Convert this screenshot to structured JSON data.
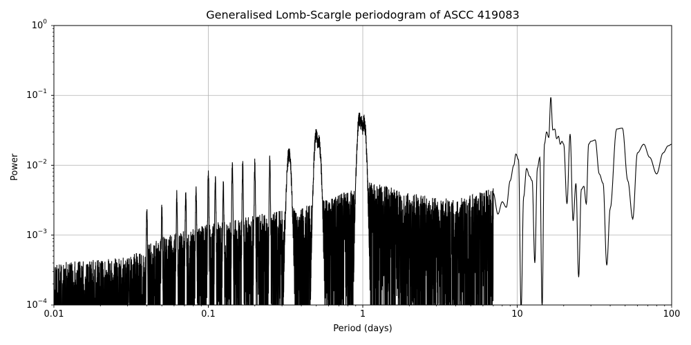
{
  "chart_data": {
    "type": "line",
    "title": "Generalised Lomb-Scargle periodogram of ASCC 419083",
    "xlabel": "Period (days)",
    "ylabel": "Power",
    "xscale": "log",
    "yscale": "log",
    "xlim": [
      0.01,
      100
    ],
    "ylim": [
      0.0001,
      1
    ],
    "grid": true,
    "legend": null,
    "x_ticks": [
      {
        "value": 0.01,
        "label": "0.01"
      },
      {
        "value": 0.1,
        "label": "0.1"
      },
      {
        "value": 1,
        "label": "1"
      },
      {
        "value": 10,
        "label": "10"
      },
      {
        "value": 100,
        "label": "100"
      }
    ],
    "y_ticks": [
      {
        "value": 1,
        "base": "10",
        "exp": "0"
      },
      {
        "value": 0.1,
        "base": "10",
        "exp": "−1"
      },
      {
        "value": 0.01,
        "base": "10",
        "exp": "−2"
      },
      {
        "value": 0.001,
        "base": "10",
        "exp": "−3"
      },
      {
        "value": 0.0001,
        "base": "10",
        "exp": "−4"
      }
    ],
    "series_color": "#000000",
    "noise_floor_envelope": {
      "period": [
        0.01,
        0.03,
        0.05,
        0.1,
        0.2,
        0.5,
        0.9,
        1.0,
        2.0,
        4.0,
        7.0,
        9.0
      ],
      "power": [
        0.00025,
        0.0003,
        0.0006,
        0.0009,
        0.0012,
        0.0018,
        0.003,
        0.004,
        0.0025,
        0.002,
        0.003,
        0.004
      ]
    },
    "alias_peaks": [
      {
        "period": 0.04,
        "power": 0.0028
      },
      {
        "period": 0.05,
        "power": 0.003
      },
      {
        "period": 0.0625,
        "power": 0.0045
      },
      {
        "period": 0.0714,
        "power": 0.005
      },
      {
        "period": 0.0833,
        "power": 0.0055
      },
      {
        "period": 0.1,
        "power": 0.0098
      },
      {
        "period": 0.111,
        "power": 0.0085
      },
      {
        "period": 0.125,
        "power": 0.007
      },
      {
        "period": 0.143,
        "power": 0.012
      },
      {
        "period": 0.167,
        "power": 0.0125
      },
      {
        "period": 0.2,
        "power": 0.013
      },
      {
        "period": 0.25,
        "power": 0.015
      },
      {
        "period": 0.333,
        "power": 0.019
      },
      {
        "period": 0.5,
        "power": 0.035
      },
      {
        "period": 0.52,
        "power": 0.028
      },
      {
        "period": 0.95,
        "power": 0.059
      },
      {
        "period": 0.98,
        "power": 0.052
      },
      {
        "period": 1.02,
        "power": 0.054
      }
    ],
    "long_period_curve": {
      "period": [
        7.0,
        7.5,
        8.0,
        8.5,
        9.0,
        9.5,
        9.8,
        10.2,
        10.6,
        11.0,
        11.5,
        12.0,
        12.5,
        13.0,
        13.5,
        14.0,
        14.5,
        15.0,
        15.5,
        16.0,
        16.5,
        17.0,
        17.5,
        18.0,
        18.5,
        19.0,
        19.5,
        20.0,
        21.0,
        22.0,
        23.0,
        24.0,
        25.0,
        26.0,
        27.0,
        28.0,
        29.0,
        30.0,
        32.0,
        34.0,
        36.0,
        38.0,
        40.0,
        44.0,
        48.0,
        52.0,
        56.0,
        60.0,
        66.0,
        72.0,
        80.0,
        88.0,
        95.0,
        100.0
      ],
      "power": [
        0.004,
        0.002,
        0.003,
        0.0025,
        0.006,
        0.01,
        0.0145,
        0.012,
        8e-05,
        0.0035,
        0.009,
        0.007,
        0.006,
        0.0004,
        0.009,
        0.013,
        9e-05,
        0.02,
        0.03,
        0.025,
        0.094,
        0.032,
        0.033,
        0.024,
        0.026,
        0.02,
        0.022,
        0.02,
        0.0028,
        0.028,
        0.0016,
        0.0055,
        0.00025,
        0.0045,
        0.005,
        0.0028,
        0.02,
        0.022,
        0.023,
        0.0075,
        0.0055,
        0.00037,
        0.0024,
        0.033,
        0.034,
        0.006,
        0.0017,
        0.015,
        0.02,
        0.013,
        0.0075,
        0.015,
        0.019,
        0.02
      ]
    }
  }
}
